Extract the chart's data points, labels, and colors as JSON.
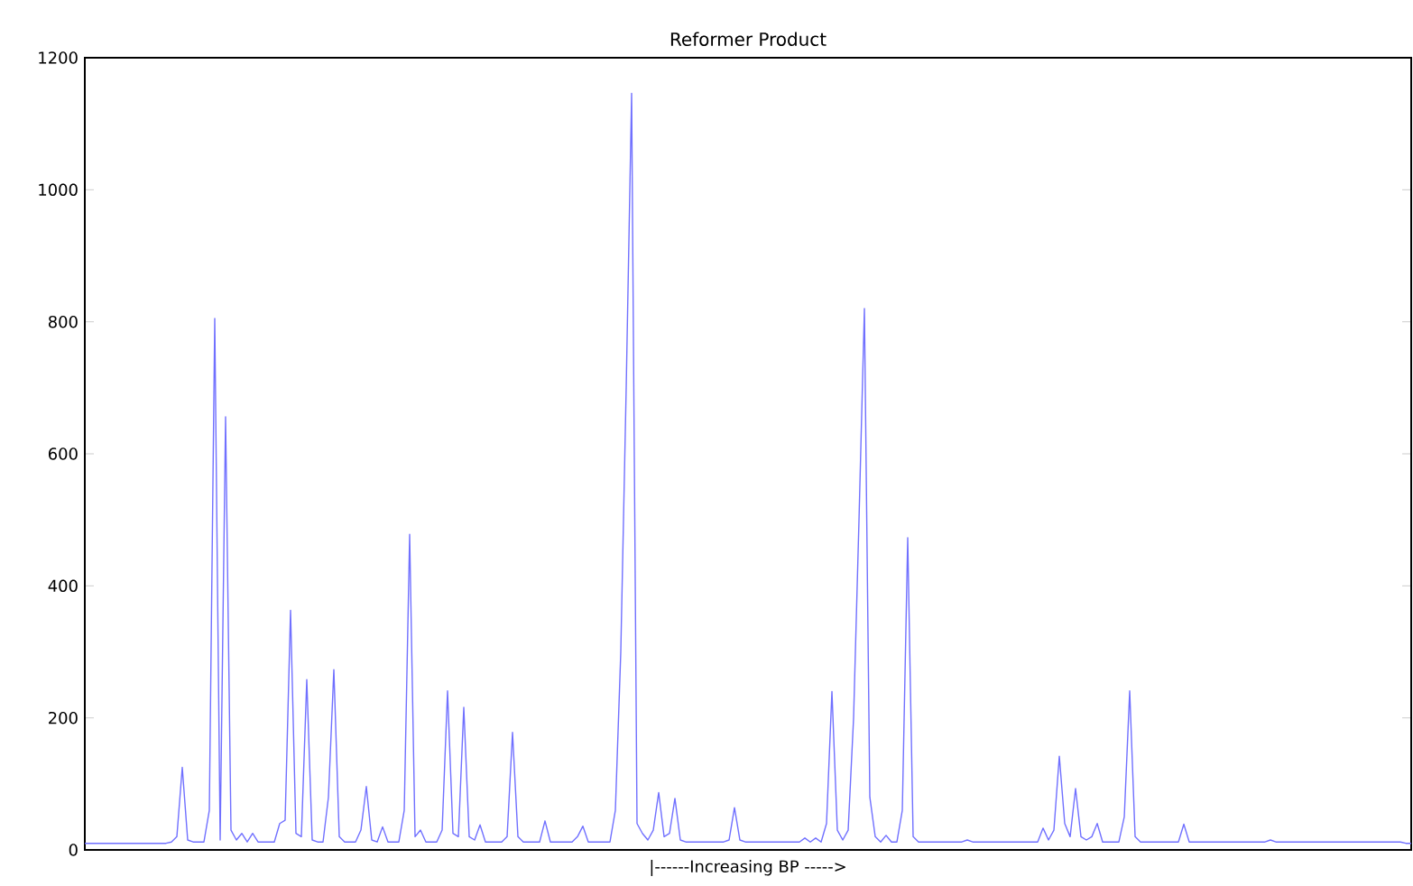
{
  "chart_data": {
    "type": "line",
    "title": "Reformer Product",
    "xlabel": "|------Increasing BP ----->",
    "categories": [
      null,
      null,
      null,
      null,
      null,
      null,
      null,
      null,
      null,
      null,
      null,
      null,
      null,
      null,
      null,
      null,
      null,
      null,
      null,
      null,
      null,
      null,
      null,
      null,
      null,
      null,
      null,
      null,
      null,
      null,
      null,
      null,
      null,
      null,
      null,
      null,
      null,
      null,
      null,
      null,
      null,
      null,
      null,
      null,
      null,
      null,
      null,
      null,
      null,
      null,
      null,
      null,
      null,
      null,
      null,
      null,
      null,
      null,
      null,
      null,
      null,
      null,
      null,
      null,
      null,
      null,
      null,
      null,
      null,
      null,
      null,
      null,
      null,
      null,
      null,
      null,
      null,
      null,
      null,
      null,
      null,
      null,
      null,
      null,
      null,
      null,
      null,
      null,
      null,
      null,
      null,
      null,
      null,
      null,
      null,
      null,
      null,
      null,
      null,
      null,
      null,
      null,
      null,
      null,
      null,
      null,
      null,
      null,
      null,
      null,
      null,
      null,
      null,
      null,
      null,
      null,
      null,
      null,
      null,
      null,
      null,
      null,
      null,
      null,
      null,
      null,
      null,
      null,
      null,
      null,
      null,
      null,
      null,
      null,
      null,
      null,
      null,
      null,
      null,
      null,
      null,
      null,
      null,
      null,
      null,
      null,
      null,
      null,
      null,
      null,
      null,
      null,
      null,
      null,
      null,
      null,
      null,
      null,
      null,
      null,
      null,
      null,
      null,
      null,
      null,
      null,
      null,
      null,
      null,
      null,
      null,
      null,
      null,
      null,
      null,
      null,
      null,
      null,
      null,
      null,
      null,
      null,
      null,
      null,
      null,
      null,
      null,
      null,
      null,
      null,
      null,
      null,
      null,
      null,
      null,
      null,
      null,
      null,
      null,
      null,
      null,
      null,
      null,
      null,
      null,
      null,
      null,
      null,
      null,
      null,
      null,
      null,
      null,
      null,
      null,
      null,
      null,
      null,
      null,
      null,
      null,
      null,
      null,
      null,
      null,
      null,
      null,
      null,
      null,
      null,
      null,
      null,
      null,
      null,
      null,
      null,
      null,
      null,
      null,
      null,
      null,
      null,
      null,
      null,
      null,
      null
    ],
    "series": [
      {
        "color": "#7070ff",
        "values": [
          10,
          10,
          10,
          10,
          10,
          10,
          10,
          10,
          10,
          10,
          10,
          10,
          10,
          10,
          10,
          10,
          12,
          20,
          125,
          15,
          12,
          12,
          12,
          60,
          805,
          15,
          656,
          30,
          15,
          25,
          12,
          25,
          12,
          12,
          12,
          12,
          40,
          45,
          363,
          25,
          20,
          258,
          15,
          12,
          12,
          80,
          273,
          20,
          12,
          12,
          12,
          30,
          96,
          15,
          12,
          35,
          12,
          12,
          12,
          60,
          478,
          20,
          30,
          12,
          12,
          12,
          30,
          241,
          25,
          20,
          216,
          20,
          15,
          38,
          12,
          12,
          12,
          12,
          20,
          178,
          20,
          12,
          12,
          12,
          12,
          44,
          12,
          12,
          12,
          12,
          12,
          20,
          36,
          12,
          12,
          12,
          12,
          12,
          60,
          300,
          700,
          1146,
          40,
          25,
          15,
          30,
          87,
          20,
          25,
          78,
          15,
          12,
          12,
          12,
          12,
          12,
          12,
          12,
          12,
          15,
          64,
          15,
          12,
          12,
          12,
          12,
          12,
          12,
          12,
          12,
          12,
          12,
          12,
          18,
          12,
          18,
          12,
          40,
          240,
          30,
          15,
          30,
          200,
          500,
          820,
          80,
          20,
          12,
          22,
          12,
          12,
          60,
          473,
          20,
          12,
          12,
          12,
          12,
          12,
          12,
          12,
          12,
          12,
          15,
          12,
          12,
          12,
          12,
          12,
          12,
          12,
          12,
          12,
          12,
          12,
          12,
          12,
          33,
          15,
          30,
          142,
          40,
          20,
          93,
          20,
          15,
          20,
          40,
          12,
          12,
          12,
          12,
          50,
          241,
          20,
          12,
          12,
          12,
          12,
          12,
          12,
          12,
          12,
          39,
          12,
          12,
          12,
          12,
          12,
          12,
          12,
          12,
          12,
          12,
          12,
          12,
          12,
          12,
          12,
          15,
          12,
          12,
          12,
          12,
          12,
          12,
          12,
          12,
          12,
          12,
          12,
          12,
          12,
          12,
          12,
          12,
          12,
          12,
          12,
          12,
          12,
          12,
          12,
          12,
          10,
          10
        ]
      }
    ],
    "ylim": [
      0,
      1200
    ],
    "yticks": [
      0,
      200,
      400,
      600,
      800,
      1000,
      1200
    ],
    "tick_labels": "y"
  }
}
